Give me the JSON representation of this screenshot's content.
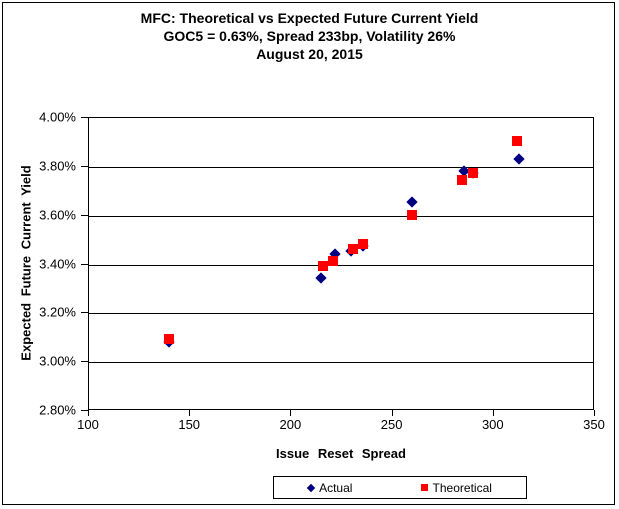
{
  "chart_data": {
    "type": "scatter",
    "title_lines": [
      "MFC: Theoretical vs Expected Future Current Yield",
      "GOC5 = 0.63%, Spread 233bp, Volatility 26%",
      "August 20, 2015"
    ],
    "xlabel": "Issue Reset Spread",
    "ylabel": "Expected Future Current Yield",
    "xlim": [
      100,
      350
    ],
    "ylim": [
      2.8,
      4.0
    ],
    "x_ticks": [
      100,
      150,
      200,
      250,
      300,
      350
    ],
    "y_ticks": [
      {
        "value": 2.8,
        "label": "2.80%"
      },
      {
        "value": 3.0,
        "label": "3.00%"
      },
      {
        "value": 3.2,
        "label": "3.20%"
      },
      {
        "value": 3.4,
        "label": "3.40%"
      },
      {
        "value": 3.6,
        "label": "3.60%"
      },
      {
        "value": 3.8,
        "label": "3.80%"
      },
      {
        "value": 4.0,
        "label": "4.00%"
      }
    ],
    "grid": "horizontal-only",
    "legend_position": "bottom-center",
    "colors": {
      "background": "#ffffff",
      "axis": "#000000",
      "gridline": "#000000",
      "actual": "#000080",
      "theoretical": "#ff0000"
    },
    "series": [
      {
        "name": "Actual",
        "marker": "diamond",
        "color": "#000080",
        "points": [
          [
            140,
            3.08
          ],
          [
            215,
            3.34
          ],
          [
            222,
            3.44
          ],
          [
            230,
            3.45
          ],
          [
            236,
            3.47
          ],
          [
            260,
            3.65
          ],
          [
            286,
            3.78
          ],
          [
            290,
            3.77
          ],
          [
            313,
            3.83
          ]
        ]
      },
      {
        "name": "Theoretical",
        "marker": "square",
        "color": "#ff0000",
        "points": [
          [
            140,
            3.09
          ],
          [
            216,
            3.39
          ],
          [
            221,
            3.41
          ],
          [
            231,
            3.46
          ],
          [
            236,
            3.48
          ],
          [
            260,
            3.6
          ],
          [
            285,
            3.74
          ],
          [
            290,
            3.77
          ],
          [
            312,
            3.9
          ]
        ]
      }
    ]
  }
}
